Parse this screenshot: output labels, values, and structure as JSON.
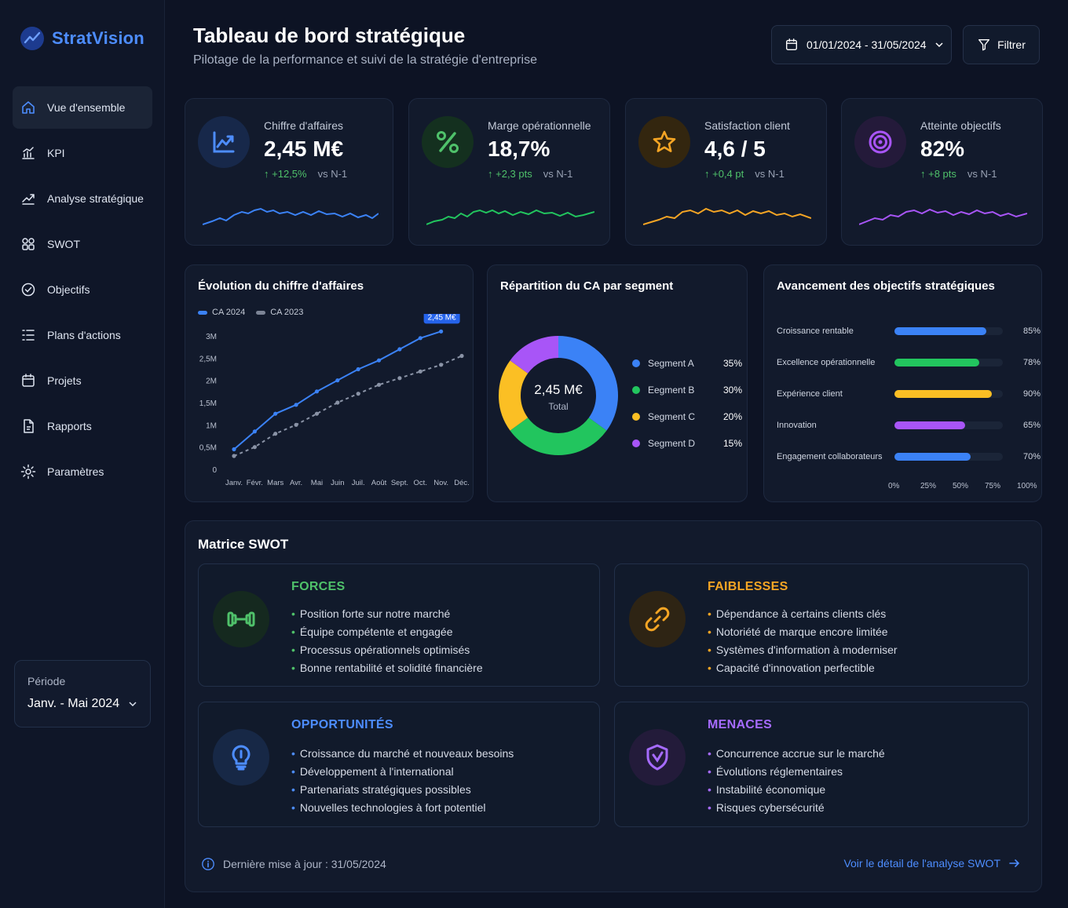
{
  "app": {
    "name": "StratVision"
  },
  "sidebar": {
    "items": [
      {
        "label": "Vue d'ensemble"
      },
      {
        "label": "KPI"
      },
      {
        "label": "Analyse stratégique"
      },
      {
        "label": "SWOT"
      },
      {
        "label": "Objectifs"
      },
      {
        "label": "Plans d'actions"
      },
      {
        "label": "Projets"
      },
      {
        "label": "Rapports"
      },
      {
        "label": "Paramètres"
      }
    ],
    "period": {
      "label": "Période",
      "value": "Janv. - Mai 2024"
    }
  },
  "header": {
    "title": "Tableau de bord stratégique",
    "subtitle": "Pilotage de la performance et suivi de la stratégie d'entreprise",
    "date_range": "01/01/2024 - 31/05/2024",
    "filter_label": "Filtrer"
  },
  "kpis": [
    {
      "title": "Chiffre d'affaires",
      "value": "2,45 M€",
      "delta": "+12,5%",
      "vs": "vs N-1",
      "color": "#3b82f6",
      "icon": "chart-up-icon"
    },
    {
      "title": "Marge opérationnelle",
      "value": "18,7%",
      "delta": "+2,3 pts",
      "vs": "vs N-1",
      "color": "#22c55e",
      "icon": "percent-icon"
    },
    {
      "title": "Satisfaction client",
      "value": "4,6 / 5",
      "delta": "+0,4 pt",
      "vs": "vs N-1",
      "color": "#f59e0b",
      "icon": "star-icon"
    },
    {
      "title": "Atteinte objectifs",
      "value": "82%",
      "delta": "+8 pts",
      "vs": "vs N-1",
      "color": "#a855f7",
      "icon": "target-icon"
    }
  ],
  "revenue_chart": {
    "title": "Évolution du chiffre d'affaires",
    "legend": [
      "CA 2024",
      "CA 2023"
    ],
    "callout": "2,45 M€",
    "y_ticks": [
      "3M",
      "2,5M",
      "2M",
      "1,5M",
      "1M",
      "0,5M",
      "0"
    ],
    "x_ticks": [
      "Janv.",
      "Févr.",
      "Mars",
      "Avr.",
      "Mai",
      "Juin",
      "Juil.",
      "Août",
      "Sept.",
      "Oct.",
      "Nov.",
      "Déc."
    ]
  },
  "segment_chart": {
    "title": "Répartition du CA par segment",
    "center_value": "2,45 M€",
    "center_label": "Total",
    "segments": [
      {
        "name": "Segment A",
        "value": "35%",
        "color": "#3b82f6"
      },
      {
        "name": "Eegment B",
        "value": "30%",
        "color": "#22c55e"
      },
      {
        "name": "Segment C",
        "value": "20%",
        "color": "#fbbf24"
      },
      {
        "name": "Segment D",
        "value": "15%",
        "color": "#a855f7"
      }
    ]
  },
  "objectives": {
    "title": "Avancement des objectifs stratégiques",
    "items": [
      {
        "label": "Croissance rentable",
        "pct": "85%",
        "value": 85,
        "color": "#3b82f6"
      },
      {
        "label": "Excellence opérationnelle",
        "pct": "78%",
        "value": 78,
        "color": "#22c55e"
      },
      {
        "label": "Expérience client",
        "pct": "90%",
        "value": 90,
        "color": "#fbbf24"
      },
      {
        "label": "Innovation",
        "pct": "65%",
        "value": 65,
        "color": "#a855f7"
      },
      {
        "label": "Engagement collaborateurs",
        "pct": "70%",
        "value": 70,
        "color": "#3b82f6"
      }
    ],
    "axis": [
      "0%",
      "25%",
      "50%",
      "75%",
      "100%"
    ]
  },
  "swot": {
    "title": "Matrice SWOT",
    "forces": {
      "title": "FORCES",
      "color": "#4fc16a",
      "items": [
        "Position forte sur notre marché",
        "Équipe compétente et engagée",
        "Processus opérationnels optimisés",
        "Bonne rentabilité et solidité financière"
      ]
    },
    "faiblesses": {
      "title": "FAIBLESSES",
      "color": "#f5a524",
      "items": [
        "Dépendance à certains clients clés",
        "Notoriété de marque encore limitée",
        "Systèmes d'information à moderniser",
        "Capacité d'innovation perfectible"
      ]
    },
    "opportunites": {
      "title": "OPPORTUNITÉS",
      "color": "#4d8dff",
      "items": [
        "Croissance du marché et nouveaux besoins",
        "Développement à l'international",
        "Partenariats stratégiques possibles",
        "Nouvelles technologies à fort potentiel"
      ]
    },
    "menaces": {
      "title": "MENACES",
      "color": "#a66bff",
      "items": [
        "Concurrence accrue sur le marché",
        "Évolutions réglementaires",
        "Instabilité économique",
        "Risques cybersécurité"
      ]
    },
    "updated": "Dernière mise à jour : 31/05/2024",
    "link": "Voir le détail de l'analyse SWOT"
  },
  "chart_data": [
    {
      "type": "line",
      "title": "Évolution du chiffre d'affaires",
      "categories": [
        "Janv.",
        "Févr.",
        "Mars",
        "Avr.",
        "Mai",
        "Juin",
        "Juil.",
        "Août",
        "Sept.",
        "Oct.",
        "Nov.",
        "Déc."
      ],
      "series": [
        {
          "name": "CA 2024",
          "values": [
            0.45,
            0.85,
            1.25,
            1.45,
            1.75,
            2.0,
            2.25,
            2.45,
            2.7,
            2.95,
            3.1,
            null
          ]
        },
        {
          "name": "CA 2023",
          "values": [
            0.3,
            0.5,
            0.8,
            1.0,
            1.25,
            1.5,
            1.7,
            1.9,
            2.05,
            2.2,
            2.35,
            2.55
          ]
        }
      ],
      "ylim": [
        0,
        3
      ]
    },
    {
      "type": "pie",
      "title": "Répartition du CA par segment",
      "categories": [
        "Segment A",
        "Eegment B",
        "Segment C",
        "Segment D"
      ],
      "values": [
        35,
        30,
        20,
        15
      ]
    },
    {
      "type": "bar",
      "title": "Avancement des objectifs stratégiques",
      "categories": [
        "Croissance rentable",
        "Excellence opérationnelle",
        "Expérience client",
        "Innovation",
        "Engagement collaborateurs"
      ],
      "values": [
        85,
        78,
        90,
        65,
        70
      ],
      "ylim": [
        0,
        100
      ]
    }
  ]
}
